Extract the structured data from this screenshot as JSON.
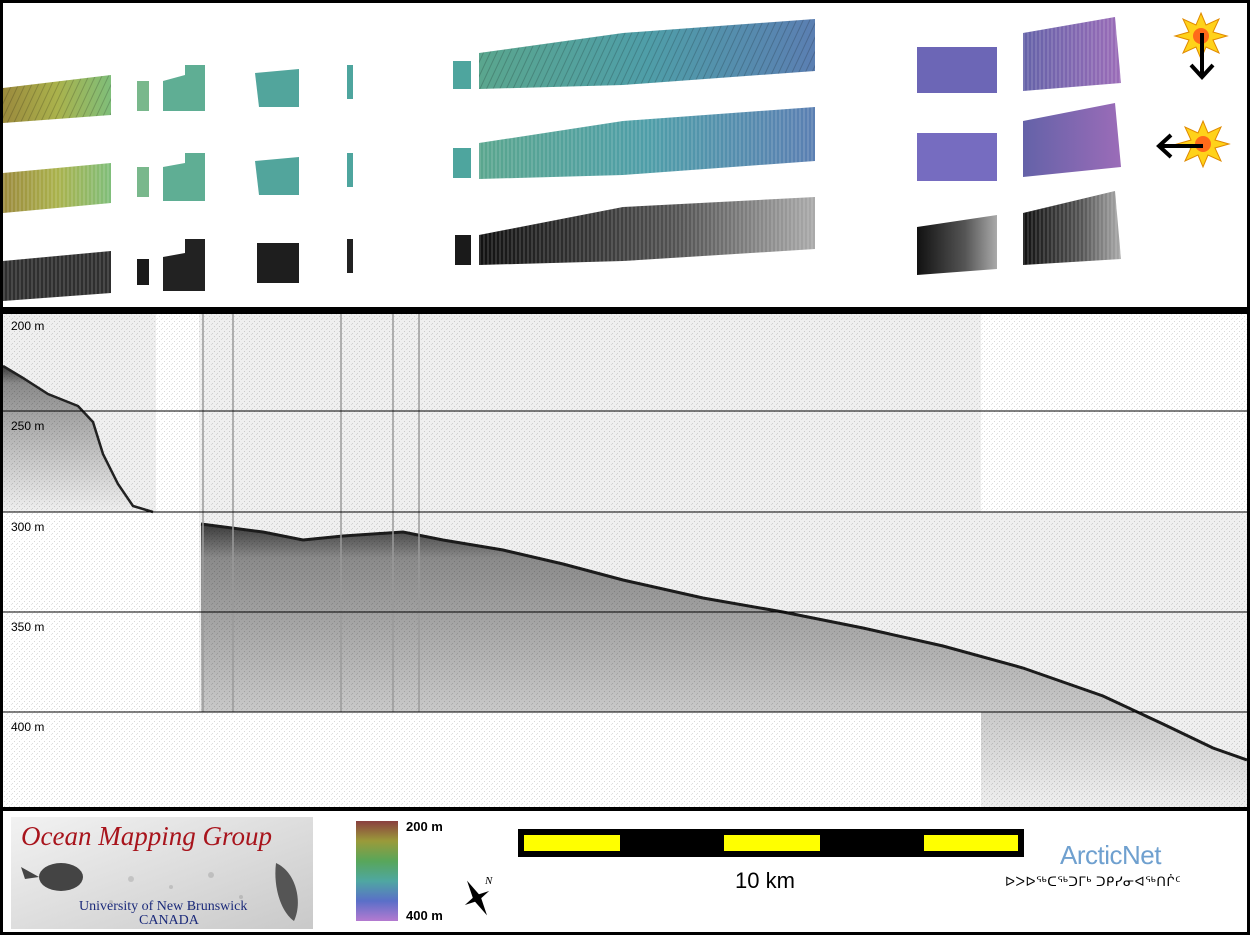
{
  "depth_scale": {
    "labels": [
      "200 m",
      "250 m",
      "300 m",
      "350 m",
      "400 m"
    ]
  },
  "logo": {
    "title": "Ocean Mapping Group",
    "line1": "University of New Brunswick",
    "line2": "CANADA"
  },
  "colorbar": {
    "top_label": "200 m",
    "bottom_label": "400 m",
    "colors": [
      "#8a3f3f",
      "#9a9a3a",
      "#58a65a",
      "#4fa7a1",
      "#5a6fc8",
      "#b47ad0"
    ]
  },
  "north_arrow": {
    "label": "N"
  },
  "scale_bar": {
    "label": "10 km",
    "fill_color": "#ffff00"
  },
  "arcticnet": {
    "title": "ArcticNet",
    "subtitle": "ᐅᐳᐅᖅᑕᖅᑐᒥᒃ ᑐᑭᓯᓂᐊᖅᑎᒌᑦ"
  },
  "sun_indicators": [
    {
      "arrow": "down"
    },
    {
      "arrow": "left"
    }
  ],
  "colors": {
    "echogram_bg": "#efefef",
    "backscatter": "#2b2b2b",
    "relief_left": "#8fae56",
    "relief_mid": "#4f9ea8",
    "relief_right": "#8a74c2"
  }
}
